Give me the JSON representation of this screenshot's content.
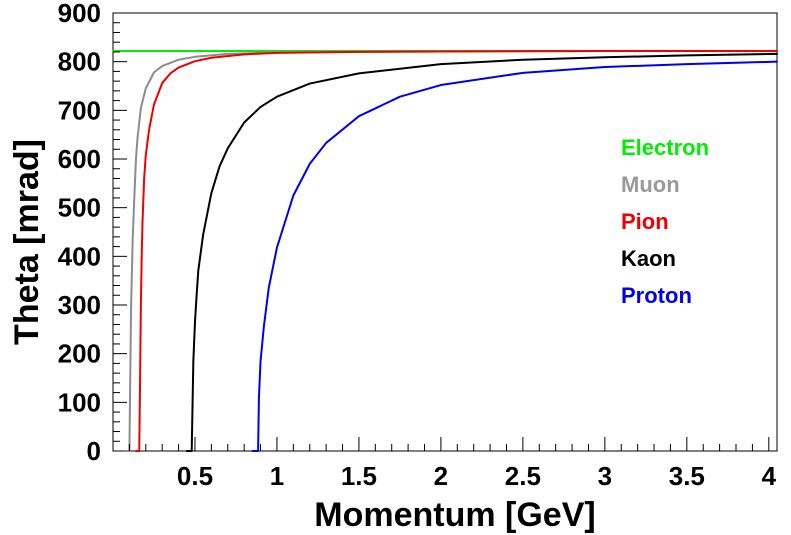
{
  "chart_data": {
    "type": "line",
    "xlabel": "Momentum [GeV]",
    "ylabel": "Theta [mrad]",
    "xlim": [
      0,
      4.05
    ],
    "ylim": [
      0,
      900
    ],
    "x_ticks": [
      {
        "value": 0.5,
        "label": "0.5"
      },
      {
        "value": 1,
        "label": "1"
      },
      {
        "value": 1.5,
        "label": "1.5"
      },
      {
        "value": 2,
        "label": "2"
      },
      {
        "value": 2.5,
        "label": "2.5"
      },
      {
        "value": 3,
        "label": "3"
      },
      {
        "value": 3.5,
        "label": "3.5"
      },
      {
        "value": 4,
        "label": "4"
      }
    ],
    "y_ticks": [
      {
        "value": 0,
        "label": "0"
      },
      {
        "value": 100,
        "label": "100"
      },
      {
        "value": 200,
        "label": "200"
      },
      {
        "value": 300,
        "label": "300"
      },
      {
        "value": 400,
        "label": "400"
      },
      {
        "value": 500,
        "label": "500"
      },
      {
        "value": 600,
        "label": "600"
      },
      {
        "value": 700,
        "label": "700"
      },
      {
        "value": 800,
        "label": "800"
      },
      {
        "value": 900,
        "label": "900"
      }
    ],
    "grid": false,
    "legend_position": "right",
    "series": [
      {
        "name": "Electron",
        "color": "#00ee00",
        "x": [
          0.0,
          4.05
        ],
        "y": [
          822,
          822
        ]
      },
      {
        "name": "Muon",
        "color": "#8c8c8c",
        "x": [
          0.07,
          0.1,
          0.11,
          0.12,
          0.13,
          0.14,
          0.15,
          0.17,
          0.2,
          0.25,
          0.3,
          0.4,
          0.5,
          0.7,
          1.0,
          1.5,
          2.0,
          3.0,
          4.05
        ],
        "y": [
          0,
          0,
          290,
          435,
          520,
          600,
          645,
          705,
          745,
          778,
          791,
          804,
          810,
          816,
          819,
          820,
          821,
          822,
          822
        ]
      },
      {
        "name": "Pion",
        "color": "#ee0000",
        "x": [
          0.14,
          0.16,
          0.165,
          0.17,
          0.175,
          0.18,
          0.19,
          0.2,
          0.22,
          0.25,
          0.3,
          0.35,
          0.4,
          0.5,
          0.6,
          0.8,
          1.0,
          1.5,
          2.0,
          3.0,
          4.05
        ],
        "y": [
          0,
          0,
          140,
          300,
          400,
          470,
          560,
          608,
          660,
          712,
          756,
          776,
          788,
          801,
          808,
          815,
          818,
          820,
          821,
          822,
          822
        ]
      },
      {
        "name": "Kaon",
        "color": "#000000",
        "x": [
          0.45,
          0.48,
          0.49,
          0.5,
          0.51,
          0.52,
          0.55,
          0.6,
          0.65,
          0.7,
          0.8,
          0.9,
          1.0,
          1.2,
          1.5,
          2.0,
          2.5,
          3.0,
          3.5,
          4.05
        ],
        "y": [
          0,
          0,
          185,
          265,
          320,
          370,
          445,
          530,
          585,
          622,
          675,
          707,
          728,
          755,
          776,
          795,
          804,
          809,
          813,
          816
        ]
      },
      {
        "name": "Proton",
        "color": "#0000ee",
        "x": [
          0.85,
          0.885,
          0.89,
          0.9,
          0.92,
          0.95,
          1.0,
          1.1,
          1.2,
          1.3,
          1.5,
          1.75,
          2.0,
          2.5,
          3.0,
          3.5,
          4.05
        ],
        "y": [
          0,
          0,
          110,
          185,
          255,
          335,
          418,
          525,
          590,
          633,
          688,
          728,
          752,
          777,
          789,
          795,
          800
        ]
      }
    ]
  }
}
